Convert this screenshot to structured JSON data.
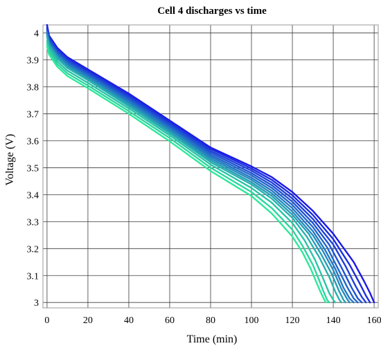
{
  "chart_data": {
    "type": "line",
    "title": "Cell 4 discharges vs time",
    "xlabel": "Time (min)",
    "ylabel": "Voltage (V)",
    "xlim": [
      -2,
      162
    ],
    "ylim": [
      2.98,
      4.03
    ],
    "grid": true,
    "xticks": [
      0,
      20,
      40,
      60,
      80,
      100,
      120,
      140,
      160
    ],
    "yticks": [
      3,
      3.1,
      3.2,
      3.3,
      3.4,
      3.5,
      3.6,
      3.7,
      3.8,
      3.9,
      4
    ],
    "color_start": "#1a1ae6",
    "color_end": "#2ee89a",
    "series": [
      {
        "values": [
          [
            0,
            4.03
          ],
          [
            1,
            3.99
          ],
          [
            5,
            3.945
          ],
          [
            10,
            3.91
          ],
          [
            20,
            3.865
          ],
          [
            40,
            3.775
          ],
          [
            60,
            3.675
          ],
          [
            80,
            3.575
          ],
          [
            100,
            3.505
          ],
          [
            110,
            3.465
          ],
          [
            120,
            3.41
          ],
          [
            130,
            3.34
          ],
          [
            140,
            3.255
          ],
          [
            150,
            3.15
          ],
          [
            155,
            3.08
          ],
          [
            158,
            3.035
          ],
          [
            160,
            3.0
          ]
        ]
      },
      {
        "values": [
          [
            0,
            4.02
          ],
          [
            1,
            3.985
          ],
          [
            5,
            3.94
          ],
          [
            10,
            3.905
          ],
          [
            20,
            3.86
          ],
          [
            40,
            3.77
          ],
          [
            60,
            3.67
          ],
          [
            80,
            3.57
          ],
          [
            100,
            3.497
          ],
          [
            110,
            3.455
          ],
          [
            120,
            3.398
          ],
          [
            130,
            3.325
          ],
          [
            140,
            3.235
          ],
          [
            148,
            3.14
          ],
          [
            153,
            3.07
          ],
          [
            156,
            3.025
          ],
          [
            158,
            3.0
          ]
        ]
      },
      {
        "values": [
          [
            0,
            4.015
          ],
          [
            1,
            3.98
          ],
          [
            5,
            3.935
          ],
          [
            10,
            3.9
          ],
          [
            20,
            3.855
          ],
          [
            40,
            3.764
          ],
          [
            60,
            3.664
          ],
          [
            80,
            3.563
          ],
          [
            100,
            3.489
          ],
          [
            110,
            3.445
          ],
          [
            120,
            3.386
          ],
          [
            130,
            3.31
          ],
          [
            140,
            3.215
          ],
          [
            146,
            3.135
          ],
          [
            151,
            3.06
          ],
          [
            154,
            3.02
          ],
          [
            156,
            3.0
          ]
        ]
      },
      {
        "values": [
          [
            0,
            4.01
          ],
          [
            1,
            3.975
          ],
          [
            5,
            3.93
          ],
          [
            10,
            3.895
          ],
          [
            20,
            3.85
          ],
          [
            40,
            3.758
          ],
          [
            60,
            3.658
          ],
          [
            80,
            3.556
          ],
          [
            100,
            3.48
          ],
          [
            110,
            3.435
          ],
          [
            120,
            3.374
          ],
          [
            130,
            3.295
          ],
          [
            138,
            3.215
          ],
          [
            144,
            3.13
          ],
          [
            149,
            3.055
          ],
          [
            152,
            3.015
          ],
          [
            154,
            3.0
          ]
        ]
      },
      {
        "values": [
          [
            0,
            4.005
          ],
          [
            1,
            3.97
          ],
          [
            5,
            3.925
          ],
          [
            10,
            3.89
          ],
          [
            20,
            3.845
          ],
          [
            40,
            3.752
          ],
          [
            60,
            3.652
          ],
          [
            80,
            3.549
          ],
          [
            100,
            3.472
          ],
          [
            110,
            3.425
          ],
          [
            120,
            3.362
          ],
          [
            130,
            3.28
          ],
          [
            137,
            3.205
          ],
          [
            142,
            3.13
          ],
          [
            147,
            3.055
          ],
          [
            150,
            3.015
          ],
          [
            152,
            3.0
          ]
        ]
      },
      {
        "values": [
          [
            0,
            4.0
          ],
          [
            1,
            3.965
          ],
          [
            5,
            3.92
          ],
          [
            10,
            3.885
          ],
          [
            20,
            3.84
          ],
          [
            40,
            3.746
          ],
          [
            60,
            3.646
          ],
          [
            80,
            3.542
          ],
          [
            100,
            3.463
          ],
          [
            110,
            3.415
          ],
          [
            120,
            3.35
          ],
          [
            130,
            3.265
          ],
          [
            136,
            3.195
          ],
          [
            141,
            3.125
          ],
          [
            145,
            3.055
          ],
          [
            148,
            3.015
          ],
          [
            150,
            3.0
          ]
        ]
      },
      {
        "values": [
          [
            0,
            3.995
          ],
          [
            1,
            3.96
          ],
          [
            5,
            3.915
          ],
          [
            10,
            3.88
          ],
          [
            20,
            3.835
          ],
          [
            40,
            3.74
          ],
          [
            60,
            3.64
          ],
          [
            80,
            3.535
          ],
          [
            100,
            3.455
          ],
          [
            110,
            3.405
          ],
          [
            120,
            3.338
          ],
          [
            130,
            3.25
          ],
          [
            135,
            3.19
          ],
          [
            140,
            3.12
          ],
          [
            144,
            3.05
          ],
          [
            147,
            3.01
          ],
          [
            148,
            3.0
          ]
        ]
      },
      {
        "values": [
          [
            0,
            3.99
          ],
          [
            1,
            3.955
          ],
          [
            5,
            3.91
          ],
          [
            10,
            3.875
          ],
          [
            20,
            3.83
          ],
          [
            40,
            3.734
          ],
          [
            60,
            3.634
          ],
          [
            80,
            3.528
          ],
          [
            100,
            3.446
          ],
          [
            110,
            3.395
          ],
          [
            120,
            3.326
          ],
          [
            128,
            3.255
          ],
          [
            134,
            3.18
          ],
          [
            139,
            3.11
          ],
          [
            143,
            3.04
          ],
          [
            145,
            3.01
          ],
          [
            146,
            3.0
          ]
        ]
      },
      {
        "values": [
          [
            0,
            3.985
          ],
          [
            1,
            3.95
          ],
          [
            5,
            3.905
          ],
          [
            10,
            3.87
          ],
          [
            20,
            3.825
          ],
          [
            40,
            3.728
          ],
          [
            60,
            3.628
          ],
          [
            80,
            3.521
          ],
          [
            100,
            3.438
          ],
          [
            110,
            3.385
          ],
          [
            120,
            3.314
          ],
          [
            127,
            3.245
          ],
          [
            133,
            3.17
          ],
          [
            138,
            3.095
          ],
          [
            141,
            3.04
          ],
          [
            143,
            3.01
          ],
          [
            144,
            3.0
          ]
        ]
      },
      {
        "values": [
          [
            0,
            3.97
          ],
          [
            1,
            3.94
          ],
          [
            5,
            3.895
          ],
          [
            10,
            3.86
          ],
          [
            20,
            3.815
          ],
          [
            40,
            3.72
          ],
          [
            60,
            3.62
          ],
          [
            80,
            3.512
          ],
          [
            100,
            3.425
          ],
          [
            110,
            3.37
          ],
          [
            120,
            3.295
          ],
          [
            126,
            3.23
          ],
          [
            131,
            3.16
          ],
          [
            135,
            3.09
          ],
          [
            138,
            3.035
          ],
          [
            140,
            3.01
          ],
          [
            141,
            3.0
          ]
        ]
      },
      {
        "values": [
          [
            0,
            3.96
          ],
          [
            1,
            3.93
          ],
          [
            5,
            3.885
          ],
          [
            10,
            3.85
          ],
          [
            20,
            3.805
          ],
          [
            40,
            3.71
          ],
          [
            60,
            3.61
          ],
          [
            80,
            3.5
          ],
          [
            100,
            3.41
          ],
          [
            110,
            3.35
          ],
          [
            120,
            3.27
          ],
          [
            125,
            3.21
          ],
          [
            130,
            3.14
          ],
          [
            133,
            3.085
          ],
          [
            135,
            3.045
          ],
          [
            137,
            3.01
          ],
          [
            138,
            3.0
          ]
        ]
      },
      {
        "values": [
          [
            0,
            3.95
          ],
          [
            1,
            3.92
          ],
          [
            5,
            3.875
          ],
          [
            10,
            3.84
          ],
          [
            20,
            3.795
          ],
          [
            40,
            3.7
          ],
          [
            60,
            3.598
          ],
          [
            80,
            3.488
          ],
          [
            100,
            3.395
          ],
          [
            110,
            3.33
          ],
          [
            120,
            3.245
          ],
          [
            125,
            3.185
          ],
          [
            129,
            3.125
          ],
          [
            132,
            3.07
          ],
          [
            134,
            3.035
          ],
          [
            136,
            3.005
          ],
          [
            136.5,
            3.0
          ]
        ]
      }
    ]
  }
}
